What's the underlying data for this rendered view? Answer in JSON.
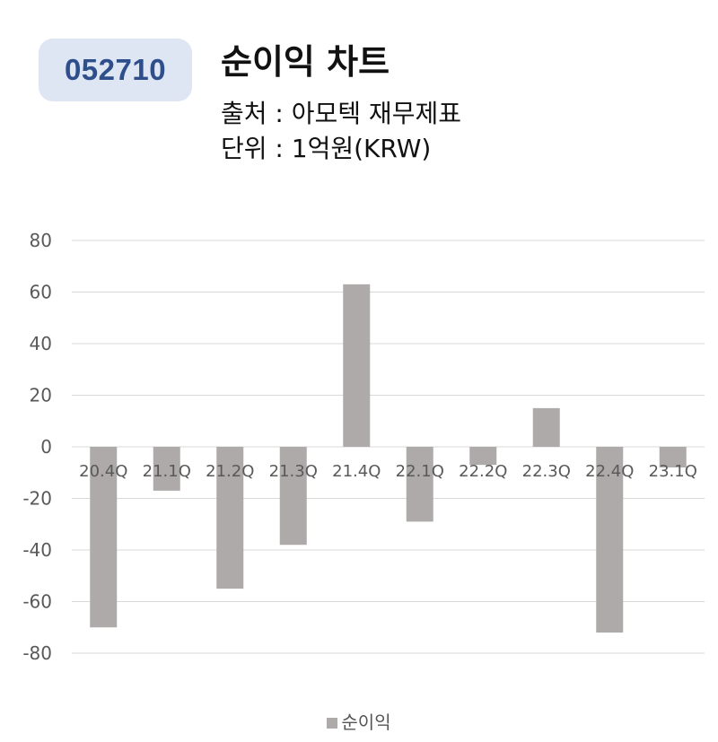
{
  "header": {
    "ticker": "052710",
    "title": "순이익 차트",
    "source": "출처 : 아모텍 재무제표",
    "unit": "단위 : 1억원(KRW)"
  },
  "chart_data": {
    "type": "bar",
    "categories": [
      "20.4Q",
      "21.1Q",
      "21.2Q",
      "21.3Q",
      "21.4Q",
      "22.1Q",
      "22.2Q",
      "22.3Q",
      "22.4Q",
      "23.1Q"
    ],
    "series": [
      {
        "name": "순이익",
        "values": [
          -70,
          -17,
          -55,
          -38,
          63,
          -29,
          -7,
          15,
          -72,
          -8
        ]
      }
    ],
    "ylim": [
      -80,
      80
    ],
    "yticks": [
      80,
      60,
      40,
      20,
      0,
      -20,
      -40,
      -60,
      -80
    ],
    "grid": true,
    "legend": "bottom-center",
    "bar_color": "#aeaaaa",
    "grid_color": "#d9d9d9"
  }
}
